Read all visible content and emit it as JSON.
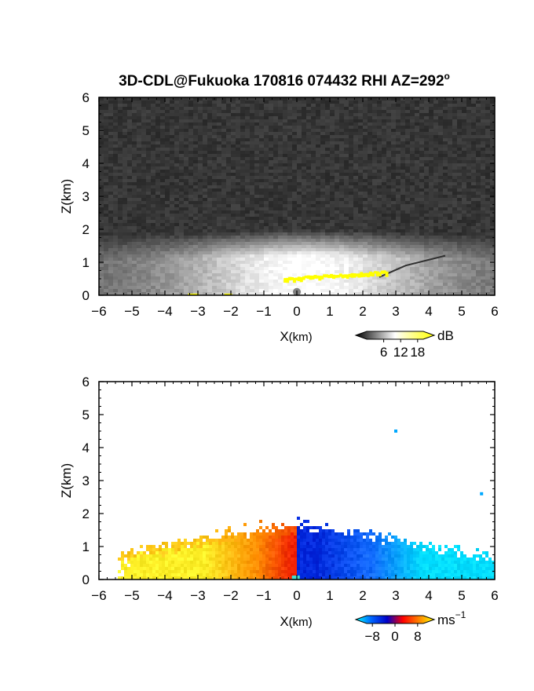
{
  "title_main": "3D-CDL@Fukuoka 170816 074432 RHI AZ=292",
  "title_sup": "o",
  "chart_data": [
    {
      "type": "heatmap",
      "quantity": "backscatter intensity",
      "xlabel_main": "X",
      "xlabel_unit": "(km)",
      "ylabel": "Z(km)",
      "xlim": [
        -6,
        6
      ],
      "ylim": [
        0,
        6
      ],
      "xticks": [
        "−6",
        "−5",
        "−4",
        "−3",
        "−2",
        "−1",
        "0",
        "1",
        "2",
        "3",
        "4",
        "5",
        "6"
      ],
      "yticks": [
        "0",
        "1",
        "2",
        "3",
        "4",
        "5",
        "6"
      ],
      "colorbar": {
        "ticks": [
          "6",
          "12",
          "18"
        ],
        "tick_values": [
          6,
          12,
          18
        ],
        "range": [
          0,
          20
        ],
        "unit": "dB",
        "colors": [
          "#000000",
          "#ffffff",
          "#ffff00"
        ]
      },
      "features": {
        "noise_background": "#3a3a3a",
        "bright_layer_top_km": 1.4,
        "dark_slope_line": {
          "x": [
            2.5,
            3.3,
            4.5
          ],
          "z": [
            0.55,
            0.9,
            1.2
          ]
        },
        "saturated_band": {
          "x": [
            -0.4,
            2.7
          ],
          "z": [
            0.45,
            0.65
          ],
          "color": "#ffff00"
        }
      }
    },
    {
      "type": "heatmap",
      "quantity": "Doppler velocity",
      "xlabel_main": "X",
      "xlabel_unit": "(km)",
      "ylabel": "Z(km)",
      "xlim": [
        -6,
        6
      ],
      "ylim": [
        0,
        6
      ],
      "xticks": [
        "−6",
        "−5",
        "−4",
        "−3",
        "−2",
        "−1",
        "0",
        "1",
        "2",
        "3",
        "4",
        "5",
        "6"
      ],
      "yticks": [
        "0",
        "1",
        "2",
        "3",
        "4",
        "5",
        "6"
      ],
      "colorbar": {
        "ticks": [
          "−8",
          "0",
          "8"
        ],
        "tick_values": [
          -8,
          0,
          8
        ],
        "range": [
          -10,
          10
        ],
        "unit": "ms",
        "unit_sup": "−1",
        "colors": [
          "#00ffff",
          "#0064ff",
          "#0000c8",
          "#ff0000",
          "#ff8000",
          "#ffff00"
        ]
      },
      "features": {
        "echo_extent_x": [
          -5.4,
          6.0
        ],
        "echo_top_km": 2.0,
        "isolated_points": [
          {
            "x": 3.0,
            "z": 4.5
          },
          {
            "x": 5.6,
            "z": 2.6
          }
        ]
      }
    }
  ]
}
